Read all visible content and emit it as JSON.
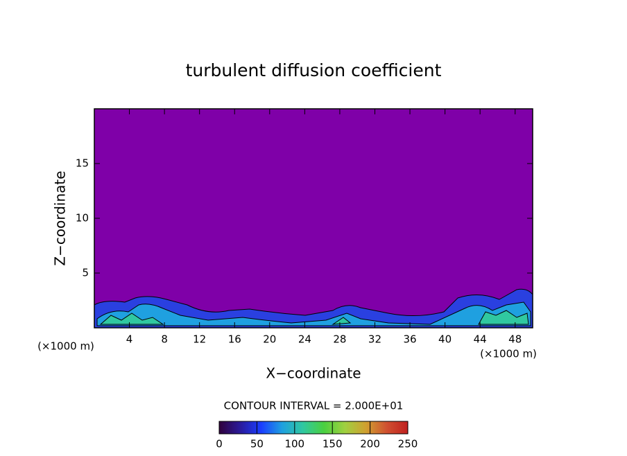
{
  "chart_data": {
    "type": "contour",
    "title": "turbulent diffusion coefficient",
    "xlabel": "X−coordinate",
    "ylabel": "Z−coordinate",
    "x_unit_label": "(×1000 m)",
    "y_unit_label": "(×1000 m)",
    "xlim": [
      0,
      50
    ],
    "xticks": [
      4,
      8,
      12,
      16,
      20,
      24,
      28,
      32,
      36,
      40,
      44,
      48
    ],
    "ylim": [
      0,
      20
    ],
    "yticks": [
      5,
      10,
      15
    ],
    "background_color": "#7f00a8",
    "contour_interval_label": "CONTOUR INTERVAL = 2.000E+01",
    "colorbar": {
      "lim": [
        0,
        250
      ],
      "ticks": [
        0,
        50,
        100,
        150,
        200,
        250
      ],
      "colors": [
        "#30003c",
        "#2a1a9a",
        "#1a3dff",
        "#1fa0e0",
        "#30c8a0",
        "#4ad040",
        "#a0d040",
        "#d0a030",
        "#d05030",
        "#c02020"
      ]
    }
  }
}
